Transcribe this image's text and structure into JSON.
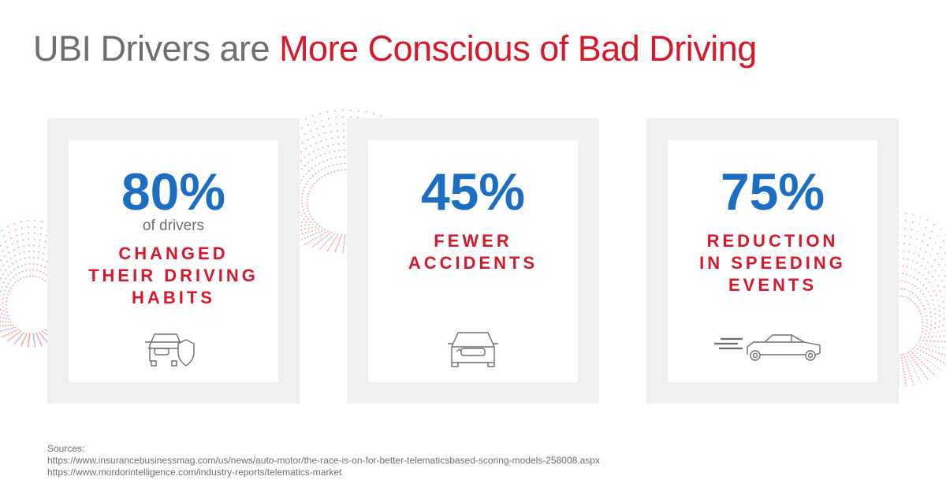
{
  "title": {
    "part1": "UBI Drivers are ",
    "part2": "More Conscious of Bad Driving"
  },
  "colors": {
    "gray": "#6d6e71",
    "red": "#d7182a",
    "blue": "#1b6ec2",
    "frame": "#eff1f0"
  },
  "cards": [
    {
      "value": "80%",
      "sub": "of drivers",
      "label_lines": [
        "CHANGED",
        "THEIR DRIVING",
        "HABITS"
      ],
      "icon": "car-shield-icon"
    },
    {
      "value": "45%",
      "label_lines": [
        "FEWER",
        "ACCIDENTS"
      ],
      "icon": "damaged-car-icon"
    },
    {
      "value": "75%",
      "label_lines": [
        "REDUCTION",
        "IN SPEEDING",
        "EVENTS"
      ],
      "icon": "speeding-car-icon"
    }
  ],
  "sources": {
    "heading": "Sources:",
    "links": [
      "https://www.insurancebusinessmag.com/us/news/auto-motor/the-race-is-on-for-better-telematicsbased-scoring-models-258008.aspx",
      "https://www.mordorintelligence.com/industry-reports/telematics-market"
    ]
  }
}
